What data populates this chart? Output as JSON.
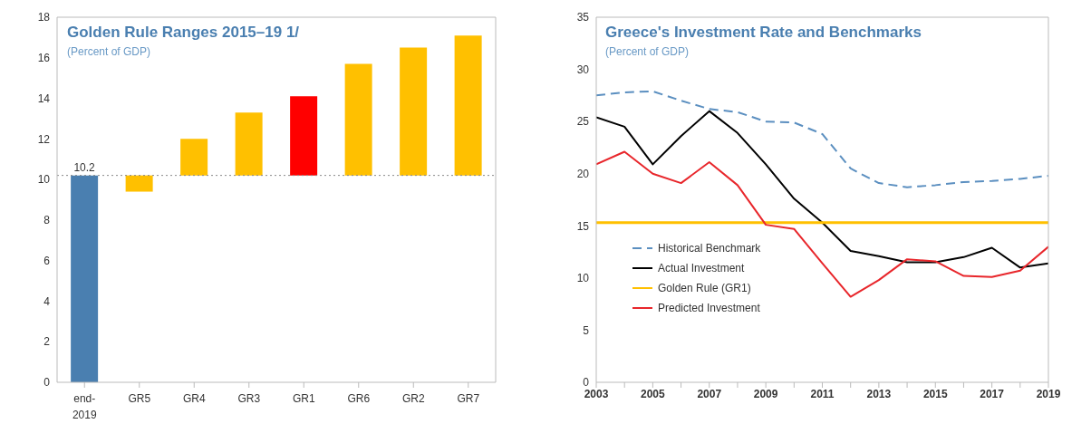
{
  "chart_data": [
    {
      "type": "bar",
      "title": "Golden Rule Ranges 2015–19 1/",
      "subtitle": "(Percent of GDP)",
      "categories": [
        "end-2019",
        "GR5",
        "GR4",
        "GR3",
        "GR1",
        "GR6",
        "GR2",
        "GR7"
      ],
      "values": [
        10.2,
        -0.8,
        1.8,
        3.1,
        3.9,
        5.5,
        6.3,
        6.9
      ],
      "base": [
        0,
        10.2,
        10.2,
        10.2,
        10.2,
        10.2,
        10.2,
        10.2
      ],
      "colors": [
        "#4a7fb0",
        "#ffc000",
        "#ffc000",
        "#ffc000",
        "#ff0000",
        "#ffc000",
        "#ffc000",
        "#ffc000"
      ],
      "value_labels": [
        "10.2",
        null,
        null,
        null,
        null,
        null,
        null,
        null
      ],
      "ref_lines": [
        {
          "axis": "y",
          "value": 10.2,
          "label": null,
          "color": "#888888",
          "line_style": "dotted"
        }
      ],
      "ylim": [
        0,
        18
      ],
      "yticks": [
        0,
        2,
        4,
        6,
        8,
        10,
        12,
        14,
        16,
        18
      ],
      "grid": false
    },
    {
      "type": "line",
      "title": "Greece's Investment Rate and Benchmarks",
      "subtitle": "(Percent of GDP)",
      "x": [
        2003,
        2004,
        2005,
        2006,
        2007,
        2008,
        2009,
        2010,
        2011,
        2012,
        2013,
        2014,
        2015,
        2016,
        2017,
        2018,
        2019
      ],
      "series": [
        {
          "name": "Historical Benchmark",
          "color": "#5b8fc0",
          "line_style": "dashed",
          "values": [
            27.5,
            27.8,
            27.9,
            27.0,
            26.2,
            25.9,
            25.0,
            24.9,
            23.8,
            20.5,
            19.1,
            18.7,
            18.9,
            19.2,
            19.3,
            19.5,
            19.8
          ]
        },
        {
          "name": "Actual Investment",
          "color": "#000000",
          "values": [
            25.4,
            24.5,
            20.9,
            23.6,
            26.0,
            23.9,
            20.9,
            17.6,
            15.3,
            12.6,
            12.1,
            11.5,
            11.5,
            12.0,
            12.9,
            11.0,
            11.4
          ]
        },
        {
          "name": "Golden Rule (GR1)",
          "color": "#ffc000",
          "values": [
            15.3,
            15.3,
            15.3,
            15.3,
            15.3,
            15.3,
            15.3,
            15.3,
            15.3,
            15.3,
            15.3,
            15.3,
            15.3,
            15.3,
            15.3,
            15.3,
            15.3
          ]
        },
        {
          "name": "Predicted Investment",
          "color": "#e8262b",
          "values": [
            20.9,
            22.1,
            20.0,
            19.1,
            21.1,
            18.9,
            15.1,
            14.7,
            11.4,
            8.2,
            9.8,
            11.8,
            11.6,
            10.2,
            10.1,
            10.7,
            13.0
          ]
        }
      ],
      "xlim": [
        2003,
        2019
      ],
      "xticks": [
        2003,
        {
          "value": 2004,
          "label": null
        },
        2005,
        {
          "value": 2006,
          "label": null
        },
        2007,
        {
          "value": 2008,
          "label": null
        },
        2009,
        {
          "value": 2010,
          "label": null
        },
        2011,
        {
          "value": 2012,
          "label": null
        },
        2013,
        {
          "value": 2014,
          "label": null
        },
        2015,
        {
          "value": 2016,
          "label": null
        },
        2017,
        {
          "value": 2018,
          "label": null
        },
        2019
      ],
      "ylim": [
        0,
        35
      ],
      "yticks": [
        0,
        5,
        10,
        15,
        20,
        25,
        30,
        35
      ],
      "grid": false,
      "legend": "bottom left",
      "marker": "none",
      "line_style": "solid"
    }
  ]
}
